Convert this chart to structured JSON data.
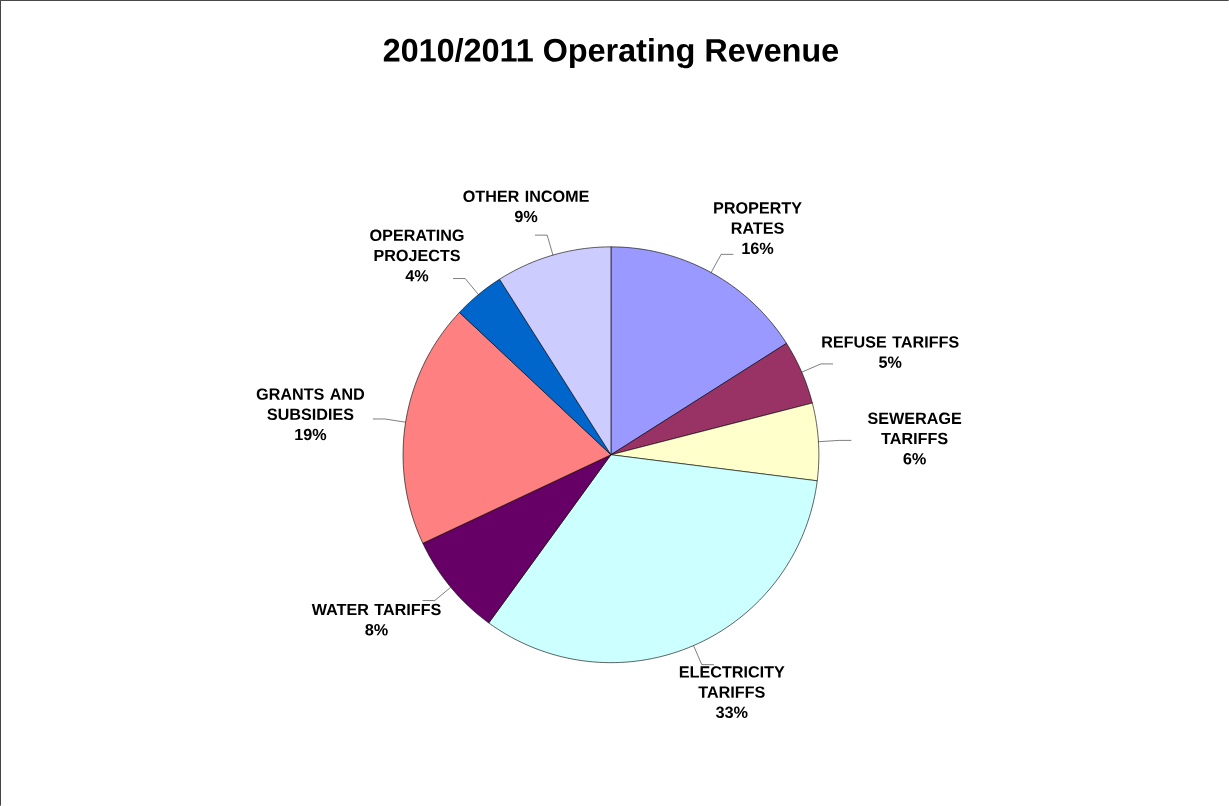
{
  "chart_data": {
    "type": "pie",
    "title": "2010/2011 Operating Revenue",
    "categories": [
      "PROPERTY RATES",
      "REFUSE TARIFFS",
      "SEWERAGE TARIFFS",
      "ELECTRICITY TARIFFS",
      "WATER TARIFFS",
      "GRANTS AND SUBSIDIES",
      "OPERATING PROJECTS",
      "OTHER INCOME"
    ],
    "values": [
      16,
      5,
      6,
      33,
      8,
      19,
      4,
      9
    ],
    "value_labels": [
      "16%",
      "5%",
      "6%",
      "33%",
      "8%",
      "19%",
      "4%",
      "9%"
    ],
    "colors": [
      "#9999ff",
      "#993366",
      "#ffffcc",
      "#ccffff",
      "#660066",
      "#ff8080",
      "#0066cc",
      "#ccccff"
    ]
  }
}
